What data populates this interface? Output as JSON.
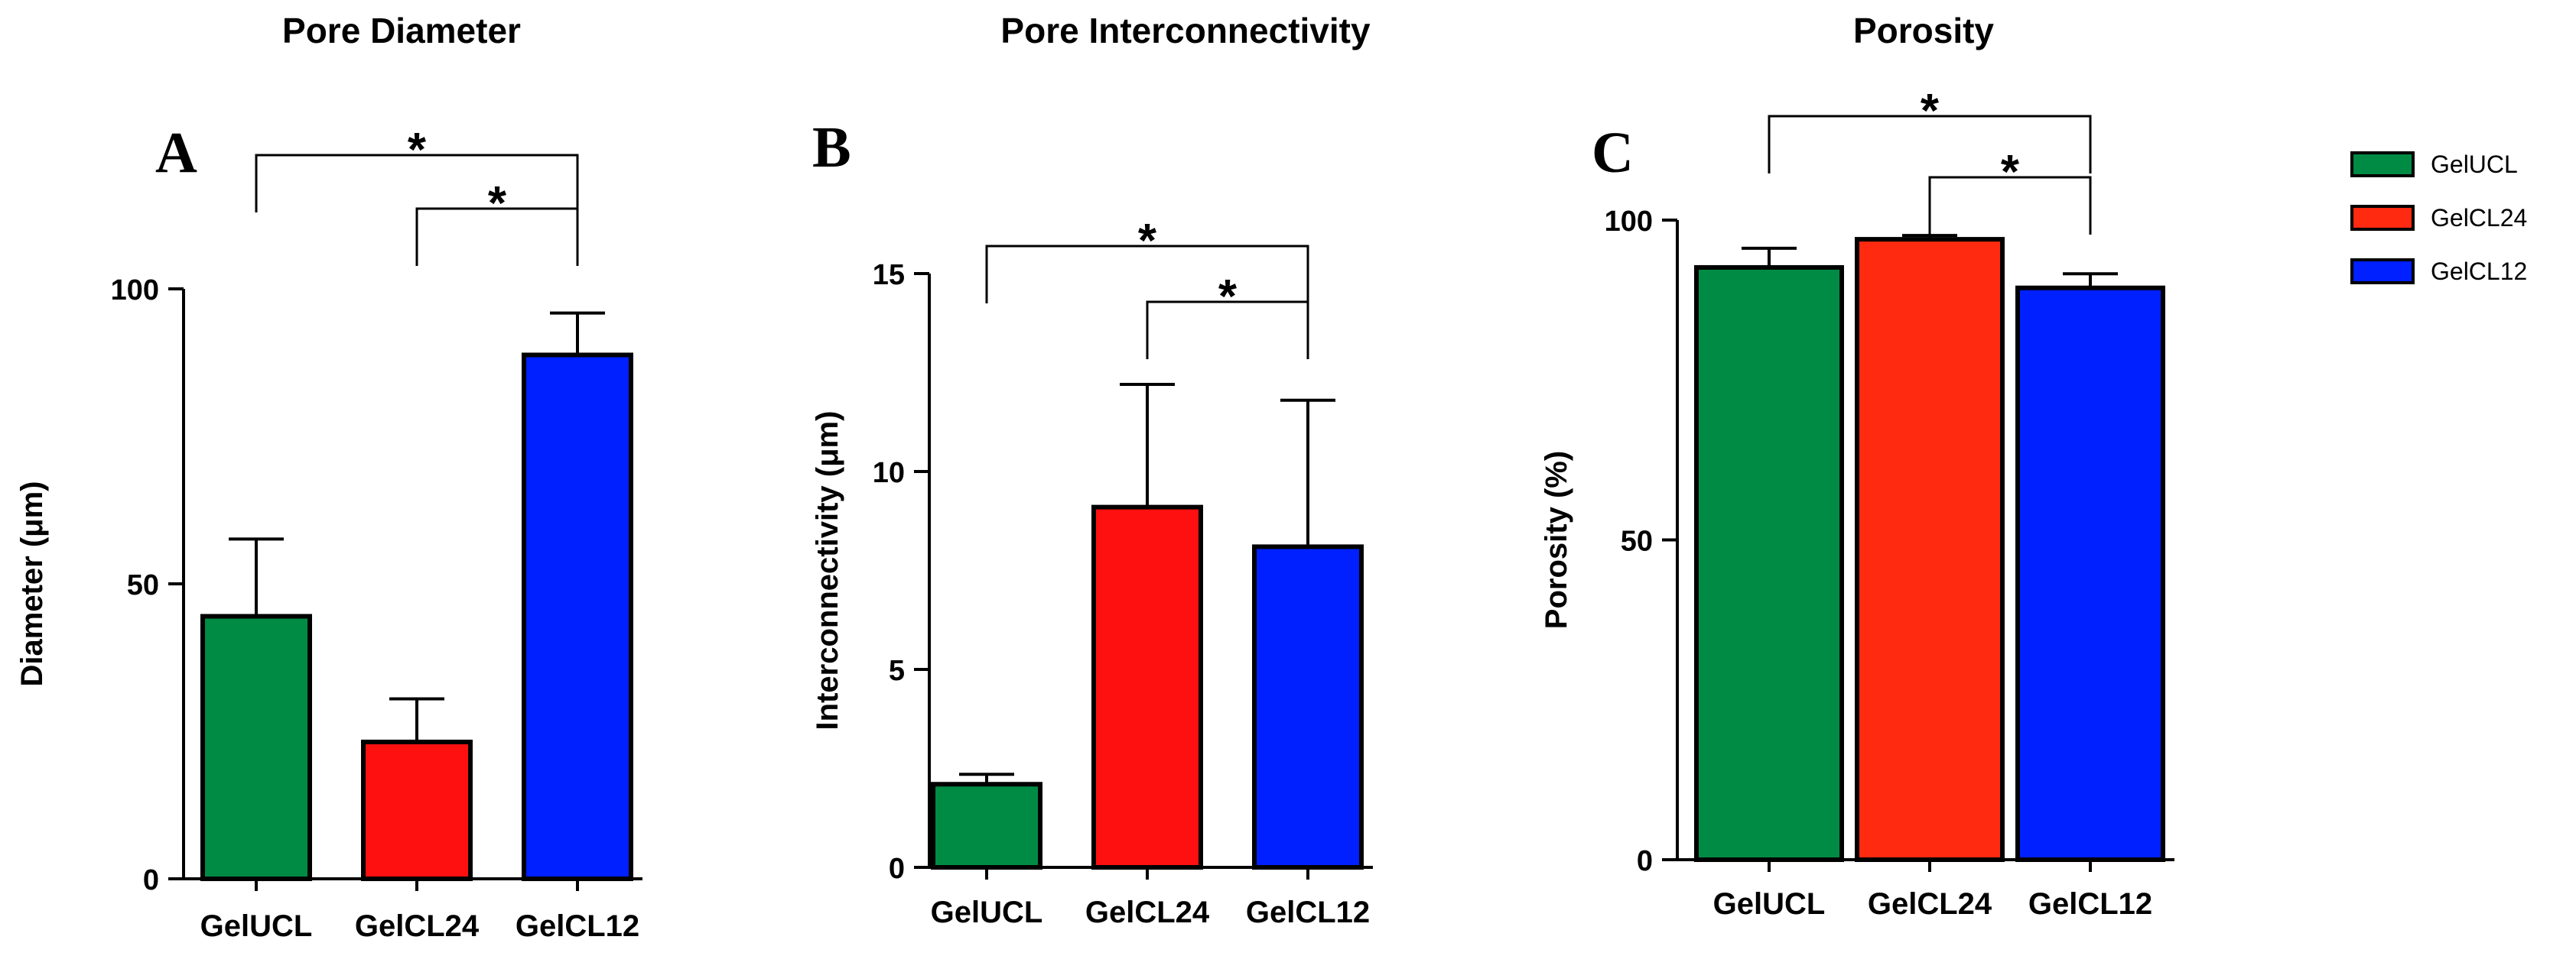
{
  "legend": {
    "entries": [
      {
        "name": "GelUCL",
        "color": "#008b45"
      },
      {
        "name": "GelCL24",
        "color": "#ff2a10"
      },
      {
        "name": "GelCL12",
        "color": "#0020ff"
      }
    ]
  },
  "chart_data": [
    {
      "type": "bar",
      "panel": "A",
      "title": "Pore Diameter",
      "ylabel": "Diameter (μm)",
      "xlabel": "",
      "ylim": [
        0,
        100
      ],
      "yticks": [
        0,
        50,
        100
      ],
      "categories": [
        "GelUCL",
        "GelCL24",
        "GelCL12"
      ],
      "values": [
        44.5,
        23.2,
        88.8
      ],
      "errors": [
        13.1,
        7.3,
        7.1
      ],
      "colors": [
        "#008b45",
        "#ff1010",
        "#0020ff"
      ],
      "significance": [
        {
          "from": 0,
          "to": 2,
          "label": "*"
        },
        {
          "from": 1,
          "to": 2,
          "label": "*"
        }
      ]
    },
    {
      "type": "bar",
      "panel": "B",
      "title": "Pore Interconnectivity",
      "ylabel": "Interconnectivity (μm)",
      "xlabel": "",
      "ylim": [
        0,
        15
      ],
      "yticks": [
        0,
        5,
        10,
        15
      ],
      "categories": [
        "GelUCL",
        "GelCL24",
        "GelCL12"
      ],
      "values": [
        2.1,
        9.1,
        8.1
      ],
      "errors": [
        0.25,
        3.1,
        3.7
      ],
      "colors": [
        "#008b45",
        "#ff1010",
        "#0020ff"
      ],
      "significance": [
        {
          "from": 0,
          "to": 2,
          "label": "*"
        },
        {
          "from": 1,
          "to": 2,
          "label": "*"
        }
      ]
    },
    {
      "type": "bar",
      "panel": "C",
      "title": "Porosity",
      "ylabel": "Porosity (%)",
      "xlabel": "",
      "ylim": [
        0,
        100
      ],
      "yticks": [
        0,
        50,
        100
      ],
      "categories": [
        "GelUCL",
        "GelCL24",
        "GelCL12"
      ],
      "values": [
        92.6,
        97.0,
        89.4
      ],
      "errors": [
        3.0,
        0.6,
        2.2
      ],
      "colors": [
        "#008b45",
        "#ff2a10",
        "#0020ff"
      ],
      "significance": [
        {
          "from": 0,
          "to": 2,
          "label": "*"
        },
        {
          "from": 1,
          "to": 2,
          "label": "*"
        }
      ]
    }
  ]
}
